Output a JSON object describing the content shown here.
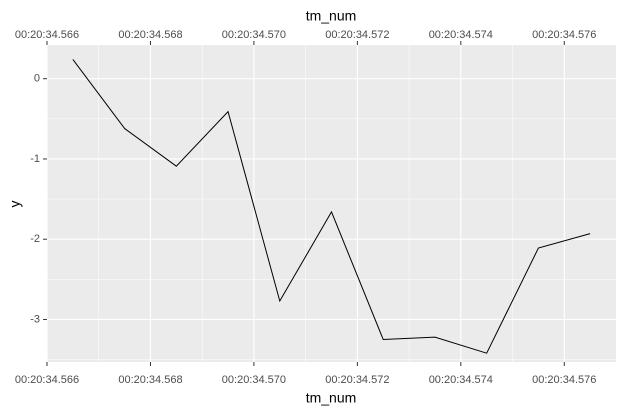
{
  "chart_data": {
    "type": "line",
    "x_label": "tm_num",
    "x2_label": "tm_num",
    "y_label": "y",
    "x": [
      1234.5665,
      1234.5675,
      1234.5685,
      1234.5695,
      1234.5705,
      1234.5715,
      1234.5725,
      1234.5735,
      1234.5745,
      1234.5755,
      1234.5765
    ],
    "series": [
      {
        "color": "#000000",
        "values": [
          0.24,
          -0.62,
          -1.09,
          -0.41,
          -2.77,
          -1.66,
          -3.25,
          -3.22,
          -3.42,
          -2.11,
          -1.93
        ]
      }
    ],
    "xlim": [
      1234.566,
      1234.577
    ],
    "xticks": [
      {
        "value": 1234.566,
        "label": "00:20:34.566"
      },
      {
        "value": 1234.568,
        "label": "00:20:34.568"
      },
      {
        "value": 1234.57,
        "label": "00:20:34.570"
      },
      {
        "value": 1234.572,
        "label": "00:20:34.572"
      },
      {
        "value": 1234.574,
        "label": "00:20:34.574"
      },
      {
        "value": 1234.576,
        "label": "00:20:34.576"
      }
    ],
    "x2ticks": [
      {
        "value": 1234.566,
        "label": "00:20:34.566"
      },
      {
        "value": 1234.568,
        "label": "00:20:34.568"
      },
      {
        "value": 1234.57,
        "label": "00:20:34.570"
      },
      {
        "value": 1234.572,
        "label": "00:20:34.572"
      },
      {
        "value": 1234.574,
        "label": "00:20:34.574"
      },
      {
        "value": 1234.576,
        "label": "00:20:34.576"
      }
    ],
    "ylim": [
      -3.53,
      0.42
    ],
    "yticks": [
      0,
      -1,
      -2,
      -3
    ],
    "grid": true
  }
}
